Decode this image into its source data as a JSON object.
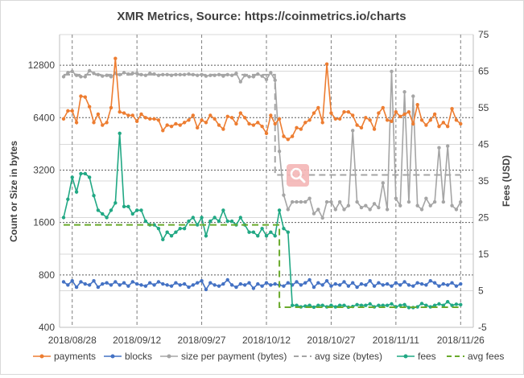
{
  "chart_data": {
    "type": "line",
    "title": "XMR Metrics, Source: https://coinmetrics.io/charts",
    "ylabel_left": "Count or Size in bytes",
    "ylabel_right": "Fees (USD)",
    "left_axis": {
      "scale": "log2",
      "ylim": [
        400,
        19200
      ],
      "ticks": [
        "400",
        "800",
        "1600",
        "3200",
        "6400",
        "12800"
      ]
    },
    "right_axis": {
      "scale": "linear",
      "ylim": [
        -5,
        75
      ],
      "ticks": [
        "-5",
        "5",
        "15",
        "25",
        "35",
        "45",
        "55",
        "65",
        "75"
      ]
    },
    "x_ticks": [
      "2018/08/28",
      "2018/09/12",
      "2018/09/27",
      "2018/10/12",
      "2018/10/27",
      "2018/11/11",
      "2018/11/26"
    ],
    "x_start": "2018/08/26",
    "grid": "dashed horizontal at left-axis ticks",
    "legend_position": "bottom",
    "series": [
      {
        "name": "payments",
        "axis": "left",
        "color": "#ed7d31",
        "style": "line-marker",
        "values": [
          6300,
          7000,
          7000,
          6000,
          8500,
          8400,
          7400,
          6000,
          6700,
          5800,
          6000,
          7300,
          14000,
          6900,
          6800,
          6600,
          6600,
          6100,
          6700,
          6400,
          6300,
          6300,
          6200,
          5400,
          5800,
          5700,
          5900,
          5800,
          6000,
          6200,
          6600,
          5600,
          6200,
          6000,
          6600,
          6300,
          5800,
          5500,
          6500,
          6400,
          5900,
          6800,
          6400,
          5900,
          5800,
          6000,
          5700,
          5200,
          6600,
          5900,
          6300,
          5000,
          4800,
          5000,
          5600,
          5500,
          6000,
          6200,
          6800,
          7300,
          6000,
          13000,
          6800,
          6300,
          6300,
          6900,
          6900,
          6600,
          5800,
          5600,
          6400,
          6200,
          5500,
          6800,
          7300,
          6200,
          6100,
          6900,
          6500,
          6700,
          6900,
          5900,
          7600,
          6200,
          5800,
          6200,
          6700,
          5700,
          6000,
          5700,
          7200,
          6200,
          5900
        ]
      },
      {
        "name": "blocks",
        "axis": "left",
        "color": "#4472c4",
        "style": "line-marker",
        "values": [
          730,
          700,
          740,
          680,
          730,
          710,
          700,
          740,
          680,
          710,
          720,
          700,
          730,
          700,
          720,
          690,
          730,
          710,
          700,
          690,
          720,
          700,
          730,
          710,
          700,
          690,
          720,
          700,
          710,
          680,
          700,
          720,
          740,
          660,
          720,
          700,
          690,
          710,
          750,
          700,
          680,
          710,
          700,
          720,
          670,
          710,
          690,
          720,
          700,
          710,
          700,
          690,
          720,
          700,
          730,
          700,
          720,
          750,
          680,
          720,
          700,
          740,
          690,
          710,
          700,
          730,
          690,
          720,
          680,
          710,
          700,
          740,
          690,
          720,
          700,
          710,
          690,
          720,
          700,
          730,
          700,
          690,
          720,
          710,
          700,
          740,
          720,
          690,
          710,
          700,
          720,
          690,
          710
        ]
      },
      {
        "name": "size per payment (bytes)",
        "axis": "left",
        "color": "#a5a5a5",
        "style": "line-marker",
        "values": [
          11000,
          11600,
          11800,
          11200,
          11000,
          11000,
          11900,
          11500,
          11300,
          11100,
          11200,
          11000,
          11500,
          11300,
          11600,
          11400,
          11500,
          11500,
          11300,
          11200,
          11500,
          11400,
          11200,
          11300,
          11300,
          11200,
          11300,
          11300,
          11300,
          11400,
          11300,
          11200,
          11300,
          11100,
          11200,
          11200,
          11300,
          11100,
          11300,
          11200,
          11500,
          10300,
          11200,
          11000,
          11000,
          11400,
          11100,
          10600,
          11600,
          10500,
          4100,
          2300,
          1900,
          2100,
          2100,
          2100,
          2100,
          2200,
          1800,
          1900,
          1700,
          2100,
          2100,
          1900,
          2100,
          1900,
          2000,
          5400,
          2100,
          1950,
          2000,
          1900,
          2050,
          1950,
          2700,
          1900,
          11800,
          2200,
          2000,
          9000,
          2100,
          8500,
          2000,
          1900,
          2200,
          2000,
          2100,
          4300,
          2100,
          4400,
          2000,
          1900,
          2100
        ]
      },
      {
        "name": "avg size (bytes)",
        "axis": "left",
        "color": "#a5a5a5",
        "style": "dashed",
        "segments": [
          {
            "from": 0,
            "to": 49,
            "value": 11300
          },
          {
            "from": 49,
            "to": 92,
            "value": 3000
          }
        ]
      },
      {
        "name": "fees",
        "axis": "right",
        "color": "#21a884",
        "style": "line-marker",
        "values": [
          25,
          30,
          36,
          32,
          37,
          37,
          36,
          31,
          27,
          26,
          25,
          27,
          29,
          48,
          28,
          28,
          26,
          27,
          27,
          24,
          23,
          23,
          22,
          19,
          21,
          20,
          21,
          22,
          22,
          24,
          25,
          23,
          25,
          20,
          24,
          25,
          24,
          27,
          24,
          24,
          23,
          25,
          23,
          21,
          21,
          20,
          22,
          20,
          21,
          20,
          27,
          22,
          21,
          1,
          1,
          0.6,
          0.8,
          1,
          0.5,
          1,
          1,
          0.6,
          1,
          0.6,
          1,
          1,
          0.5,
          0.7,
          1.2,
          1,
          1,
          1.4,
          0.6,
          1,
          1,
          1,
          1.4,
          0.6,
          1,
          1.2,
          0.4,
          0.4,
          0.6,
          1.5,
          1,
          0.6,
          1,
          1.4,
          1,
          2,
          1,
          1.3,
          1.2
        ]
      },
      {
        "name": "avg fees",
        "axis": "right",
        "color": "#6aaa2c",
        "style": "dashed",
        "segments": [
          {
            "from": 0,
            "to": 50,
            "value": 23
          },
          {
            "from": 50,
            "to": 92,
            "value": 0.5
          }
        ]
      }
    ]
  },
  "legend": [
    {
      "label": "payments",
      "color": "#ed7d31",
      "kind": "marker"
    },
    {
      "label": "blocks",
      "color": "#4472c4",
      "kind": "marker"
    },
    {
      "label": "size per payment (bytes)",
      "color": "#a5a5a5",
      "kind": "marker"
    },
    {
      "label": "avg size (bytes)",
      "color": "#a5a5a5",
      "kind": "dash"
    },
    {
      "label": "fees",
      "color": "#21a884",
      "kind": "marker"
    },
    {
      "label": "avg fees",
      "color": "#6aaa2c",
      "kind": "dash"
    }
  ],
  "zoom_control": {
    "icon": "magnifier-icon"
  }
}
